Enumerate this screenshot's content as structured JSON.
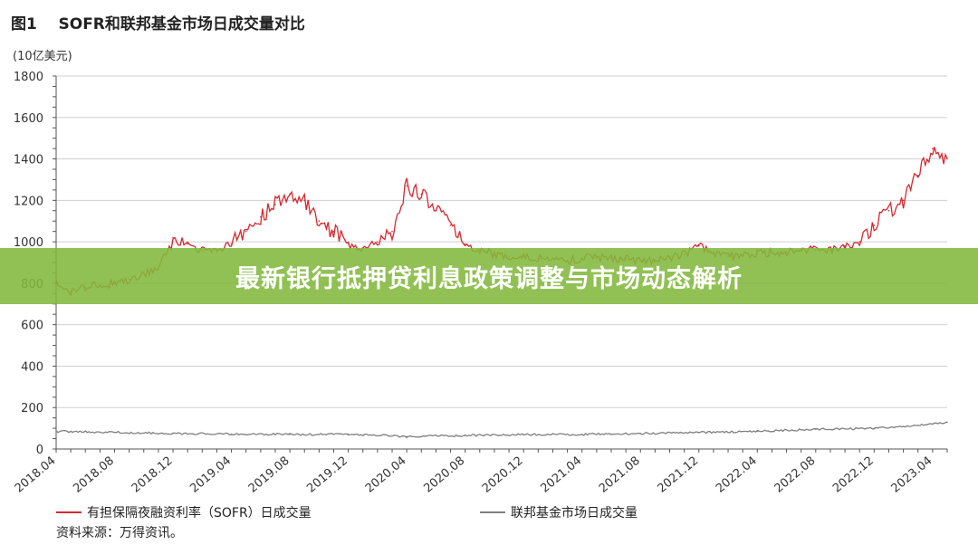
{
  "figure_title": "图1    SOFR和联邦基金市场日成交量对比",
  "banner_text": "最新银行抵押贷利息政策调整与市场动态解析",
  "source_text": "资料来源：万得资讯。",
  "colors": {
    "sofr": "#d7282f",
    "fedfunds": "#7f7f7f",
    "banner": "#82b83c"
  },
  "chart_data": {
    "type": "line",
    "title": "SOFR和联邦基金市场日成交量对比",
    "ylabel": "(10亿美元)",
    "ylim": [
      0,
      1800
    ],
    "yticks": [
      0,
      200,
      400,
      600,
      800,
      1000,
      1200,
      1400,
      1600,
      1800
    ],
    "xticks": [
      "2018.04",
      "2018.08",
      "2018.12",
      "2019.04",
      "2019.08",
      "2019.12",
      "2020.04",
      "2020.08",
      "2020.12",
      "2021.04",
      "2021.08",
      "2021.12",
      "2022.04",
      "2022.08",
      "2022.12",
      "2023.04"
    ],
    "xlim": [
      "2018-04",
      "2023-05"
    ],
    "grid": "horizontal",
    "legend": "bottom",
    "series": [
      {
        "name": "有担保隔夜融资利率（SOFR）日成交量",
        "x": [
          "2018-04",
          "2018-05",
          "2018-06",
          "2018-07",
          "2018-08",
          "2018-09",
          "2018-10",
          "2018-11",
          "2018-12",
          "2019-01",
          "2019-02",
          "2019-03",
          "2019-04",
          "2019-05",
          "2019-06",
          "2019-07",
          "2019-08",
          "2019-09",
          "2019-10",
          "2019-11",
          "2019-12",
          "2020-01",
          "2020-02",
          "2020-03",
          "2020-04",
          "2020-05",
          "2020-06",
          "2020-07",
          "2020-08",
          "2020-09",
          "2020-10",
          "2020-11",
          "2020-12",
          "2021-01",
          "2021-02",
          "2021-03",
          "2021-04",
          "2021-05",
          "2021-06",
          "2021-07",
          "2021-08",
          "2021-09",
          "2021-10",
          "2021-11",
          "2021-12",
          "2022-01",
          "2022-02",
          "2022-03",
          "2022-04",
          "2022-05",
          "2022-06",
          "2022-07",
          "2022-08",
          "2022-09",
          "2022-10",
          "2022-11",
          "2022-12",
          "2023-01",
          "2023-02",
          "2023-03",
          "2023-04",
          "2023-05"
        ],
        "values": [
          800,
          760,
          780,
          790,
          800,
          820,
          850,
          870,
          1020,
          990,
          960,
          950,
          990,
          1050,
          1120,
          1180,
          1230,
          1200,
          1100,
          1050,
          990,
          970,
          1000,
          1050,
          1270,
          1230,
          1150,
          1080,
          990,
          960,
          940,
          930,
          930,
          920,
          920,
          910,
          920,
          930,
          920,
          920,
          910,
          910,
          920,
          940,
          980,
          950,
          930,
          930,
          940,
          950,
          950,
          960,
          960,
          960,
          980,
          1000,
          1080,
          1150,
          1200,
          1320,
          1450,
          1400
        ]
      },
      {
        "name": "联邦基金市场日成交量",
        "x": [
          "2018-04",
          "2018-08",
          "2018-12",
          "2019-04",
          "2019-08",
          "2019-12",
          "2020-04",
          "2020-08",
          "2020-12",
          "2021-04",
          "2021-08",
          "2021-12",
          "2022-04",
          "2022-08",
          "2022-12",
          "2023-04",
          "2023-05"
        ],
        "values": [
          85,
          80,
          75,
          72,
          70,
          72,
          60,
          65,
          70,
          70,
          75,
          80,
          85,
          95,
          100,
          120,
          130
        ]
      }
    ]
  }
}
